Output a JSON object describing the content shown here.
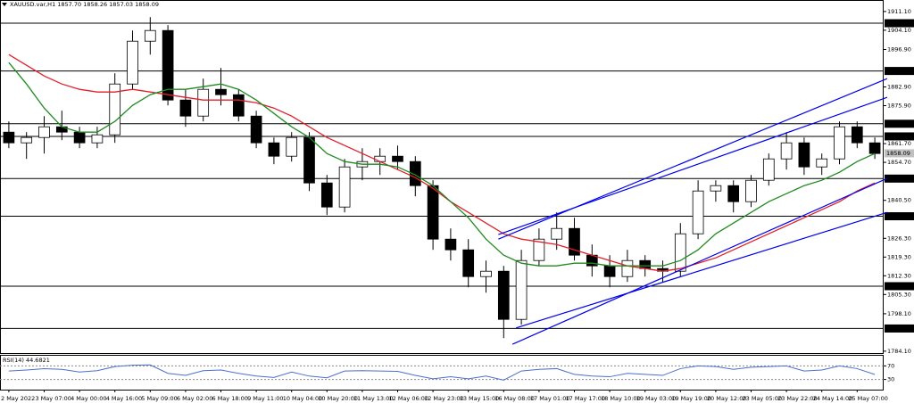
{
  "chart_data": [
    {
      "type": "candlestick",
      "title": "XAUUSD.var,H1  1857.70 1858.26 1857.03 1858.09",
      "categories": [
        "2 May 2022",
        null,
        "3 May 07:00",
        null,
        "4 May 00:00",
        null,
        "4 May 16:00",
        null,
        "5 May 09:00",
        null,
        "6 May 02:00",
        null,
        "6 May 18:00",
        null,
        "9 May 11:00",
        null,
        "10 May 04:00",
        null,
        "10 May 20:00",
        null,
        "11 May 13:00",
        null,
        "12 May 06:00",
        null,
        "12 May 23:00",
        null,
        "13 May 15:00",
        null,
        "16 May 08:00",
        null,
        "17 May 01:00",
        null,
        "17 May 17:00",
        null,
        "18 May 10:00",
        null,
        "19 May 03:00",
        null,
        "19 May 19:00",
        null,
        "20 May 12:00",
        null,
        "23 May 05:00",
        null,
        "23 May 22:00",
        null,
        "24 May 14:00",
        null,
        "25 May 07:00",
        null
      ],
      "open": [
        1866,
        1862,
        1864,
        1868,
        1866,
        1862,
        1865,
        1884,
        1900,
        1904,
        1878,
        1872,
        1882,
        1880,
        1872,
        1862,
        1857,
        1864,
        1847,
        1838,
        1853,
        1855,
        1857,
        1855,
        1846,
        1826,
        1822,
        1812,
        1814,
        1796,
        1818,
        1826,
        1830,
        1820,
        1816,
        1812,
        1818,
        1815,
        1814,
        1828,
        1844,
        1846,
        1840,
        1848,
        1856,
        1862,
        1853,
        1856,
        1868,
        1862
      ],
      "high": [
        1870,
        1866,
        1872,
        1874,
        1868,
        1868,
        1888,
        1904,
        1909,
        1906,
        1882,
        1886,
        1890,
        1882,
        1874,
        1864,
        1866,
        1866,
        1850,
        1856,
        1860,
        1860,
        1861,
        1857,
        1848,
        1830,
        1826,
        1818,
        1816,
        1822,
        1830,
        1836,
        1834,
        1824,
        1820,
        1822,
        1820,
        1818,
        1832,
        1848,
        1848,
        1848,
        1850,
        1858,
        1866,
        1864,
        1858,
        1870,
        1870,
        1864
      ],
      "low": [
        1860,
        1856,
        1858,
        1863,
        1860,
        1860,
        1862,
        1882,
        1895,
        1876,
        1868,
        1870,
        1876,
        1870,
        1860,
        1854,
        1855,
        1844,
        1835,
        1836,
        1848,
        1850,
        1852,
        1842,
        1822,
        1818,
        1808,
        1806,
        1789,
        1794,
        1816,
        1822,
        1818,
        1812,
        1808,
        1810,
        1812,
        1810,
        1812,
        1826,
        1840,
        1836,
        1838,
        1846,
        1852,
        1850,
        1850,
        1854,
        1860,
        1856
      ],
      "close": [
        1862,
        1864,
        1868,
        1866,
        1862,
        1865,
        1884,
        1900,
        1904,
        1878,
        1872,
        1882,
        1880,
        1872,
        1862,
        1857,
        1864,
        1847,
        1838,
        1853,
        1855,
        1857,
        1855,
        1846,
        1826,
        1822,
        1812,
        1814,
        1796,
        1818,
        1826,
        1830,
        1820,
        1816,
        1812,
        1818,
        1815,
        1814,
        1828,
        1844,
        1846,
        1840,
        1848,
        1856,
        1862,
        1853,
        1856,
        1868,
        1862,
        1858
      ],
      "candle_colors": {
        "up": "#ffffff",
        "down": "#000000",
        "outline": "#000000"
      },
      "lines": [
        {
          "color": "#e0202a",
          "values": [
            1895,
            1891,
            1887,
            1884,
            1882,
            1881,
            1881,
            1882,
            1881,
            1880,
            1879,
            1878,
            1878,
            1878,
            1877,
            1875,
            1872,
            1868,
            1864,
            1861,
            1858,
            1855,
            1852,
            1849,
            1845,
            1840,
            1836,
            1832,
            1828,
            1826,
            1825,
            1824,
            1822,
            1820,
            1818,
            1816,
            1815,
            1814,
            1815,
            1817,
            1819,
            1822,
            1825,
            1828,
            1831,
            1834,
            1837,
            1840,
            1844,
            1847
          ]
        },
        {
          "color": "#1f8a1f",
          "values": [
            1892,
            1884,
            1875,
            1868,
            1866,
            1866,
            1870,
            1876,
            1880,
            1882,
            1882,
            1883,
            1884,
            1882,
            1878,
            1873,
            1868,
            1864,
            1858,
            1855,
            1854,
            1854,
            1853,
            1850,
            1846,
            1840,
            1834,
            1826,
            1820,
            1817,
            1816,
            1816,
            1817,
            1817,
            1816,
            1816,
            1816,
            1816,
            1818,
            1822,
            1828,
            1832,
            1836,
            1840,
            1843,
            1846,
            1848,
            1851,
            1855,
            1858
          ]
        }
      ],
      "trendlines": [
        {
          "color": "#0000ee",
          "x": [
            27.7,
            49.7
          ],
          "values": [
            1826,
            1886
          ]
        },
        {
          "color": "#0000ee",
          "x": [
            27.7,
            49.7
          ],
          "values": [
            1827.7,
            1879
          ]
        },
        {
          "color": "#0000ee",
          "x": [
            28.5,
            49.7
          ],
          "values": [
            1786.7,
            1848.7
          ]
        },
        {
          "color": "#0000ee",
          "x": [
            28.7,
            49.7
          ],
          "values": [
            1792.8,
            1836
          ]
        }
      ],
      "levels": [
        1906.72,
        1888.87,
        1869.13,
        1864.41,
        1848.63,
        1834.55,
        1808.41,
        1792.59
      ],
      "current_price": 1858.09,
      "ylim": [
        1783.4,
        1915.4
      ],
      "yticks": [
        {
          "value": 1911.1,
          "label": "1911.10"
        },
        {
          "value": 1904.1,
          "label": "1904.10"
        },
        {
          "value": 1896.9,
          "label": "1896.90"
        },
        {
          "value": 1882.9,
          "label": "1882.90"
        },
        {
          "value": 1875.9,
          "label": "1875.90"
        },
        {
          "value": 1861.7,
          "label": "1861.70"
        },
        {
          "value": 1854.7,
          "label": "1854.70"
        },
        {
          "value": 1840.5,
          "label": "1840.50"
        },
        {
          "value": 1826.3,
          "label": "1826.30"
        },
        {
          "value": 1819.3,
          "label": "1819.30"
        },
        {
          "value": 1812.3,
          "label": "1812.30"
        },
        {
          "value": 1805.3,
          "label": "1805.30"
        },
        {
          "value": 1798.1,
          "label": "1798.10"
        },
        {
          "value": 1784.1,
          "label": "1784.10"
        }
      ]
    },
    {
      "type": "line",
      "title": "RSI(14) 44.6821",
      "color": "#4a6fd0",
      "values": [
        55,
        58,
        62,
        60,
        52,
        56,
        68,
        72,
        73,
        48,
        42,
        56,
        58,
        48,
        40,
        36,
        52,
        40,
        35,
        55,
        56,
        55,
        54,
        42,
        32,
        38,
        32,
        40,
        28,
        55,
        60,
        62,
        45,
        40,
        38,
        48,
        45,
        42,
        62,
        70,
        68,
        60,
        66,
        68,
        70,
        55,
        58,
        70,
        62,
        44.68
      ],
      "ylim": [
        0,
        100
      ],
      "yticks": [
        70,
        30
      ]
    }
  ]
}
